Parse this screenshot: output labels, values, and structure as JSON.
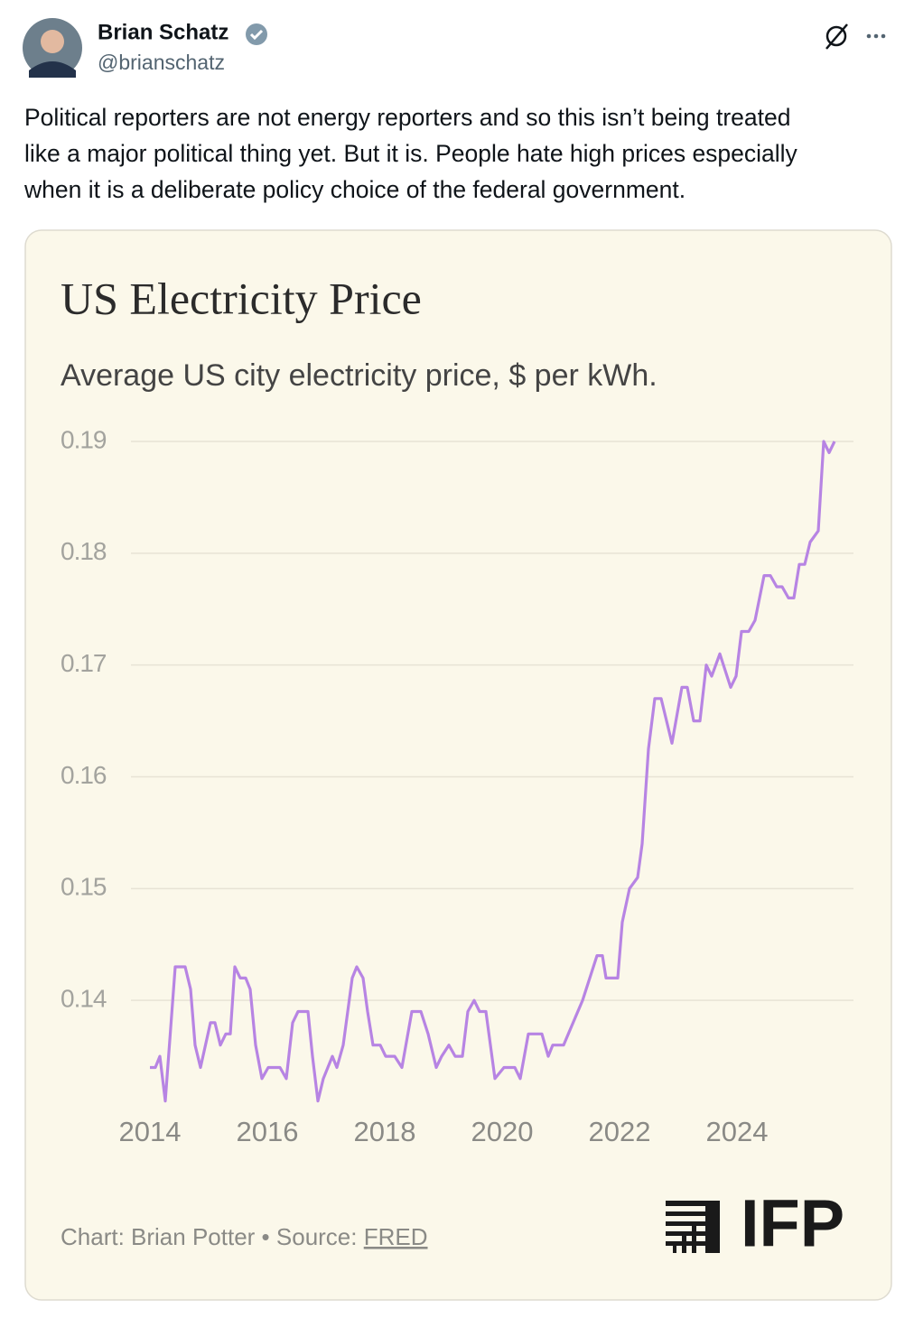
{
  "tweet": {
    "name": "Brian Schatz",
    "handle": "@brianschatz",
    "text_lines": [
      "Political reporters are not energy reporters and so this isn’t being treated",
      "like a major political thing yet. But it is. People hate high prices especially",
      "when it is a deliberate policy choice of the federal government."
    ]
  },
  "chart_data": {
    "type": "line",
    "title": "US Electricity Price",
    "subtitle": "Average US city electricity price, $ per kWh.",
    "x": [
      2014.0,
      2014.092,
      2014.169,
      2014.262,
      2014.431,
      2014.6,
      2014.692,
      2014.769,
      2014.862,
      2015.031,
      2015.108,
      2015.2,
      2015.292,
      2015.369,
      2015.446,
      2015.538,
      2015.631,
      2015.708,
      2015.8,
      2015.908,
      2016.015,
      2016.215,
      2016.323,
      2016.431,
      2016.523,
      2016.692,
      2016.769,
      2016.862,
      2016.954,
      2017.108,
      2017.185,
      2017.292,
      2017.446,
      2017.523,
      2017.631,
      2017.708,
      2017.8,
      2017.923,
      2018.015,
      2018.169,
      2018.292,
      2018.462,
      2018.615,
      2018.738,
      2018.877,
      2018.969,
      2019.092,
      2019.2,
      2019.323,
      2019.415,
      2019.523,
      2019.615,
      2019.723,
      2019.877,
      2020.031,
      2020.215,
      2020.308,
      2020.446,
      2020.677,
      2020.785,
      2020.862,
      2021.046,
      2021.369,
      2021.615,
      2021.708,
      2021.769,
      2021.969,
      2022.046,
      2022.169,
      2022.308,
      2022.385,
      2022.492,
      2022.6,
      2022.708,
      2022.892,
      2023.062,
      2023.154,
      2023.262,
      2023.369,
      2023.477,
      2023.569,
      2023.708,
      2023.892,
      2023.985,
      2024.077,
      2024.2,
      2024.308,
      2024.462,
      2024.569,
      2024.677,
      2024.769,
      2024.877,
      2024.969,
      2025.062,
      2025.154,
      2025.246,
      2025.385,
      2025.477,
      2025.569,
      2025.662
    ],
    "values": [
      0.134,
      0.134,
      0.135,
      0.131,
      0.143,
      0.143,
      0.141,
      0.136,
      0.134,
      0.138,
      0.138,
      0.136,
      0.137,
      0.137,
      0.143,
      0.142,
      0.142,
      0.141,
      0.136,
      0.133,
      0.134,
      0.134,
      0.133,
      0.138,
      0.139,
      0.139,
      0.135,
      0.131,
      0.133,
      0.135,
      0.134,
      0.136,
      0.142,
      0.143,
      0.142,
      0.139,
      0.136,
      0.136,
      0.135,
      0.135,
      0.134,
      0.139,
      0.139,
      0.137,
      0.134,
      0.135,
      0.136,
      0.135,
      0.135,
      0.139,
      0.14,
      0.139,
      0.139,
      0.133,
      0.134,
      0.134,
      0.133,
      0.137,
      0.137,
      0.135,
      0.136,
      0.136,
      0.14,
      0.144,
      0.144,
      0.142,
      0.142,
      0.147,
      0.15,
      0.151,
      0.154,
      0.1625,
      0.167,
      0.167,
      0.163,
      0.168,
      0.168,
      0.165,
      0.165,
      0.17,
      0.169,
      0.171,
      0.168,
      0.169,
      0.173,
      0.173,
      0.174,
      0.178,
      0.178,
      0.177,
      0.177,
      0.176,
      0.176,
      0.179,
      0.179,
      0.181,
      0.182,
      0.19,
      0.189,
      0.19
    ],
    "color": "#b784e3",
    "xlim": [
      2013.677,
      2025.985
    ],
    "xticks": [
      2014,
      2016,
      2018,
      2020,
      2022,
      2024
    ],
    "ylim": [
      0.13,
      0.19
    ],
    "yticks": [
      0.14,
      0.15,
      0.16,
      0.17,
      0.18,
      0.19
    ],
    "grid": true,
    "footer": {
      "credit": "Chart: Brian Potter",
      "separator": "•",
      "source_label": "Source:",
      "source": "FRED"
    },
    "logo": "IFP"
  }
}
